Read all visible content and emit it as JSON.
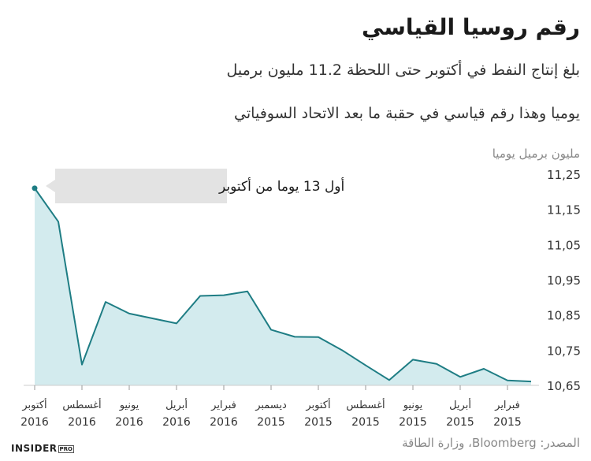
{
  "header": {
    "title": "رقم روسيا القياسي",
    "subtitle_line1": "بلغ إنتاج النفط في أكتوبر حتى اللحظة 11.2 مليون برميل",
    "subtitle_line2": "يوميا وهذا رقم قياسي في حقبة ما بعد الاتحاد السوفياتي"
  },
  "footer": {
    "source": "المصدر: Bloomberg، وزارة الطاقة",
    "logo": "INSIDER",
    "logo_tag": "PRO"
  },
  "colors": {
    "line": "#1e7d84",
    "area": "#d3ebee",
    "annotation_bg": "#e3e3e3",
    "grid": "#cccccc"
  },
  "chart_data": {
    "type": "area",
    "ylabel": "مليون برميل يوميا",
    "ylim": [
      10.65,
      11.25
    ],
    "yticks": [
      10.65,
      10.75,
      10.85,
      10.95,
      11.05,
      11.15,
      11.25
    ],
    "ytick_labels": [
      "10,65",
      "10,75",
      "10,85",
      "10,95",
      "11,05",
      "11,15",
      "11,25"
    ],
    "x_order": "right-to-left",
    "x_ticks": [
      {
        "month": "فبراير",
        "year": "2015",
        "pos": 1
      },
      {
        "month": "أبريل",
        "year": "2015",
        "pos": 3
      },
      {
        "month": "يونيو",
        "year": "2015",
        "pos": 5
      },
      {
        "month": "أغسطس",
        "year": "2015",
        "pos": 7
      },
      {
        "month": "أكتوبر",
        "year": "2015",
        "pos": 9
      },
      {
        "month": "ديسمبر",
        "year": "2015",
        "pos": 11
      },
      {
        "month": "فبراير",
        "year": "2016",
        "pos": 13
      },
      {
        "month": "أبريل",
        "year": "2016",
        "pos": 15
      },
      {
        "month": "يونيو",
        "year": "2016",
        "pos": 17
      },
      {
        "month": "أغسطس",
        "year": "2016",
        "pos": 19
      },
      {
        "month": "أكتوبر",
        "year": "2016",
        "pos": 21
      }
    ],
    "series": [
      {
        "x": [
          0,
          1,
          2,
          3,
          4,
          5,
          6,
          7,
          8,
          9,
          10,
          11,
          12,
          13,
          14,
          15,
          16,
          17,
          18,
          19,
          20,
          21
        ],
        "values": [
          10.661,
          10.664,
          10.697,
          10.674,
          10.711,
          10.723,
          10.665,
          10.707,
          10.75,
          10.787,
          10.788,
          10.808,
          10.917,
          10.906,
          10.904,
          10.826,
          10.84,
          10.854,
          10.887,
          10.709,
          11.115,
          11.21
        ]
      }
    ],
    "annotation": {
      "text": "أول 13 يوما من أكتوبر",
      "at_x": 21
    }
  }
}
